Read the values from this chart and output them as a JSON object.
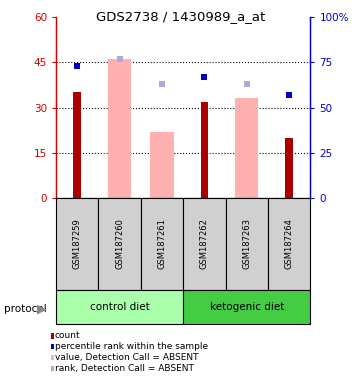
{
  "title": "GDS2738 / 1430989_a_at",
  "samples": [
    "GSM187259",
    "GSM187260",
    "GSM187261",
    "GSM187262",
    "GSM187263",
    "GSM187264"
  ],
  "count_values": [
    35,
    0,
    0,
    32,
    0,
    20
  ],
  "count_color": "#aa0000",
  "percentile_values": [
    73,
    0,
    0,
    67,
    0,
    57
  ],
  "percentile_color": "#0000cc",
  "absent_value_bars": [
    0,
    46,
    22,
    0,
    33,
    0
  ],
  "absent_value_color": "#ffb0b0",
  "absent_rank_dots": [
    0,
    77,
    63,
    0,
    63,
    0
  ],
  "absent_rank_color": "#aaaadd",
  "ylim_left": [
    0,
    60
  ],
  "ylim_right": [
    0,
    100
  ],
  "yticks_left": [
    0,
    15,
    30,
    45,
    60
  ],
  "ytick_labels_left": [
    "0",
    "15",
    "30",
    "45",
    "60"
  ],
  "ytick_labels_right": [
    "0",
    "25",
    "50",
    "75",
    "100%"
  ],
  "left_tick_color": "#cc0000",
  "right_tick_color": "#0000cc",
  "grid_lines": [
    15,
    30,
    45
  ],
  "legend_items": [
    {
      "label": "count",
      "color": "#aa0000"
    },
    {
      "label": "percentile rank within the sample",
      "color": "#0000cc"
    },
    {
      "label": "value, Detection Call = ABSENT",
      "color": "#ffb0b0"
    },
    {
      "label": "rank, Detection Call = ABSENT",
      "color": "#aaaadd"
    }
  ],
  "control_diet_color": "#aaffaa",
  "ketogenic_diet_color": "#44cc44",
  "sample_box_color": "#d0d0d0"
}
